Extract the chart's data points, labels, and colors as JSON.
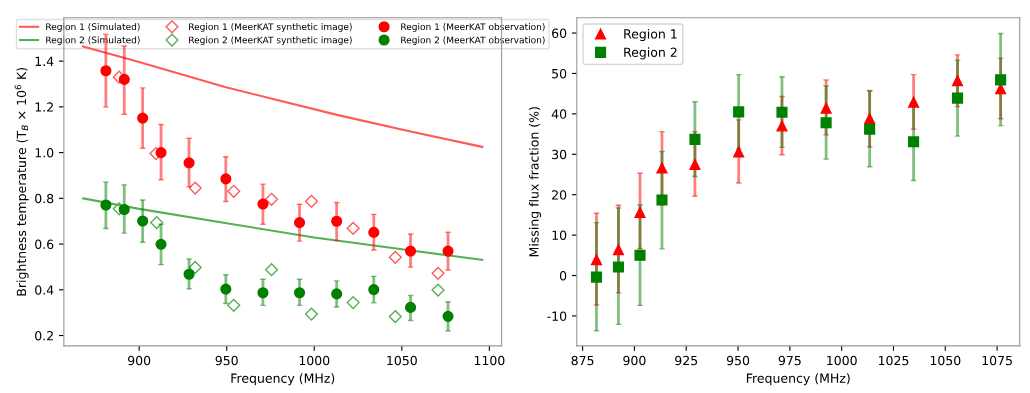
{
  "chart_data": [
    {
      "type": "scatter",
      "xlabel": "Frequency (MHz)",
      "ylabel": "Brightness temperature (T$_{B}$ × 10$^{6}$ K)",
      "xlim": [
        857,
        1107
      ],
      "ylim": [
        0.155,
        1.59
      ],
      "xticks": [
        900,
        950,
        1000,
        1050,
        1100
      ],
      "yticks": [
        0.2,
        0.4,
        0.6,
        0.8,
        {
          "value": 1.0,
          "label": "1.0"
        },
        1.2,
        1.4
      ],
      "legend": "top",
      "grid": false,
      "series": [
        {
          "name": "Region 1 (Simulated)",
          "type": "line",
          "color": "#ff5a5a",
          "marker": "none",
          "line_style": "solid",
          "x": [
            868,
            900,
            949,
            1013,
            1055,
            1096
          ],
          "values": [
            1.464,
            1.396,
            1.287,
            1.165,
            1.092,
            1.025
          ]
        },
        {
          "name": "Region 2 (Simulated)",
          "type": "line",
          "color": "#55b055",
          "marker": "none",
          "line_style": "solid",
          "x": [
            868,
            900,
            950,
            1000,
            1050,
            1096
          ],
          "values": [
            0.8,
            0.754,
            0.691,
            0.629,
            0.577,
            0.531
          ]
        },
        {
          "name": "Region 1 (MeerKAT synthetic image)",
          "color": "#ff5a5a",
          "marker": "diamond",
          "x": [
            888.6,
            909.6,
            932,
            954,
            975.6,
            998.4,
            1022.2,
            1046.3,
            1070.7
          ],
          "values": [
            1.33,
            0.996,
            0.845,
            0.831,
            0.796,
            0.787,
            0.669,
            0.542,
            0.472
          ]
        },
        {
          "name": "Region 2 (MeerKAT synthetic image)",
          "color": "#55b055",
          "marker": "diamond",
          "x": [
            888.6,
            910,
            932,
            954,
            975.6,
            998.4,
            1022.2,
            1046.3,
            1070.7
          ],
          "values": [
            0.754,
            0.694,
            0.498,
            0.332,
            0.488,
            0.294,
            0.344,
            0.283,
            0.399
          ]
        },
        {
          "name": "Region 1 (MeerKAT observation)",
          "color": "#ff0000",
          "marker": "circle",
          "x": [
            881,
            891.5,
            902,
            912.5,
            928.5,
            949.5,
            970.7,
            991.6,
            1012.8,
            1034,
            1055,
            1076.4
          ],
          "values": [
            1.358,
            1.32,
            1.151,
            1.0,
            0.955,
            0.885,
            0.775,
            0.694,
            0.7,
            0.651,
            0.569,
            0.569
          ],
          "errors": [
            [
              1.199,
              1.517
            ],
            [
              1.168,
              1.466
            ],
            [
              1.019,
              1.283
            ],
            [
              0.881,
              1.123
            ],
            [
              0.85,
              1.063
            ],
            [
              0.786,
              0.982
            ],
            [
              0.687,
              0.862
            ],
            [
              0.613,
              0.774
            ],
            [
              0.615,
              0.782
            ],
            [
              0.574,
              0.73
            ],
            [
              0.499,
              0.644
            ],
            [
              0.486,
              0.652
            ]
          ]
        },
        {
          "name": "Region 2 (MeerKAT observation)",
          "color": "#008000",
          "marker": "circle",
          "x": [
            881,
            891.5,
            902,
            912.5,
            928.5,
            949.5,
            970.7,
            991.6,
            1012.8,
            1034,
            1055,
            1076.4
          ],
          "values": [
            0.771,
            0.751,
            0.701,
            0.599,
            0.468,
            0.403,
            0.387,
            0.387,
            0.382,
            0.401,
            0.323,
            0.284
          ],
          "errors": [
            [
              0.668,
              0.871
            ],
            [
              0.648,
              0.859
            ],
            [
              0.608,
              0.793
            ],
            [
              0.51,
              0.687
            ],
            [
              0.404,
              0.535
            ],
            [
              0.34,
              0.466
            ],
            [
              0.332,
              0.446
            ],
            [
              0.332,
              0.446
            ],
            [
              0.325,
              0.439
            ],
            [
              0.343,
              0.459
            ],
            [
              0.266,
              0.375
            ],
            [
              0.22,
              0.348
            ]
          ]
        }
      ]
    },
    {
      "type": "scatter",
      "xlabel": "Frequency (MHz)",
      "ylabel": "Missing flux fraction (%)",
      "xlim": [
        872.2,
        1085.9
      ],
      "ylim": [
        -17.4,
        63.8
      ],
      "xticks": [
        875,
        900,
        925,
        950,
        975,
        1000,
        1025,
        1050,
        1075
      ],
      "yticks": [
        -10,
        0,
        10,
        20,
        30,
        40,
        50,
        60
      ],
      "legend": "top left",
      "grid": false,
      "series": [
        {
          "name": "Region 1",
          "color": "#ff0000",
          "marker": "triangle",
          "x": [
            881.7,
            892.3,
            902.7,
            913.3,
            929.2,
            950.3,
            971.2,
            992.5,
            1013.5,
            1034.7,
            1055.9,
            1076.7
          ],
          "values": [
            3.9,
            6.4,
            15.6,
            26.6,
            27.5,
            30.6,
            37.0,
            41.4,
            38.8,
            42.9,
            48.2,
            46.2
          ],
          "errors": [
            [
              -7.3,
              15.4
            ],
            [
              -4.3,
              17.4
            ],
            [
              6.7,
              25.3
            ],
            [
              17.5,
              35.6
            ],
            [
              19.6,
              35.6
            ],
            [
              22.9,
              38.5
            ],
            [
              29.9,
              44.3
            ],
            [
              34.8,
              48.4
            ],
            [
              31.8,
              45.8
            ],
            [
              36.2,
              49.7
            ],
            [
              41.8,
              54.6
            ],
            [
              38.8,
              53.8
            ]
          ]
        },
        {
          "name": "Region 2",
          "color": "#008000",
          "marker": "square",
          "x": [
            881.7,
            892.3,
            902.7,
            913.3,
            929.2,
            950.3,
            971.2,
            992.5,
            1013.5,
            1034.7,
            1055.9,
            1076.7
          ],
          "values": [
            -0.4,
            2.1,
            5.0,
            18.7,
            33.7,
            40.5,
            40.4,
            37.8,
            36.2,
            33.1,
            43.9,
            48.4
          ],
          "errors": [
            [
              -13.7,
              13.1
            ],
            [
              -12.1,
              16.7
            ],
            [
              -7.4,
              17.5
            ],
            [
              6.6,
              30.7
            ],
            [
              24.5,
              43.0
            ],
            [
              31.4,
              49.7
            ],
            [
              31.7,
              49.2
            ],
            [
              28.8,
              46.9
            ],
            [
              26.9,
              45.6
            ],
            [
              23.5,
              42.1
            ],
            [
              34.5,
              53.3
            ],
            [
              37.1,
              59.9
            ]
          ]
        }
      ]
    }
  ]
}
